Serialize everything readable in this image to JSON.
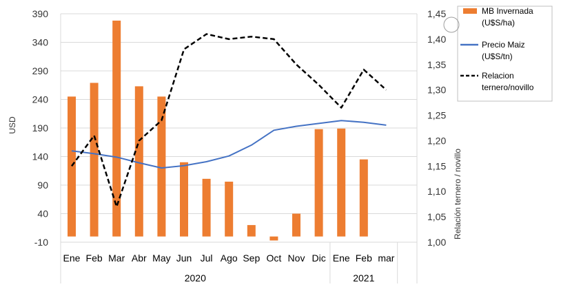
{
  "chart_data": {
    "type": "bar",
    "categories": [
      "Ene",
      "Feb",
      "Mar",
      "Abr",
      "May",
      "Jun",
      "Jul",
      "Ago",
      "Sep",
      "Oct",
      "Nov",
      "Dic",
      "Ene",
      "Feb",
      "mar"
    ],
    "groups": [
      {
        "label": "2020",
        "span": [
          0,
          11
        ]
      },
      {
        "label": "2021",
        "span": [
          12,
          14
        ]
      }
    ],
    "ylabel": "USD",
    "y2label": "Relación ternero / novillo",
    "ylim": [
      -10,
      390
    ],
    "y2lim": [
      1.0,
      1.45
    ],
    "yticks": [
      "-10",
      "40",
      "90",
      "140",
      "190",
      "240",
      "290",
      "340",
      "390"
    ],
    "y2ticks": [
      "1,00",
      "1,05",
      "1,10",
      "1,15",
      "1,20",
      "1,25",
      "1,30",
      "1,35",
      "1,40",
      "1,45"
    ],
    "legend_position": "top-right",
    "series": [
      {
        "name": "MB Invernada (U$S/ha)",
        "legend_lines": [
          "MB Invernada",
          "(U$S/ha)"
        ],
        "type": "bar",
        "axis": "left",
        "color": "#ed7d31",
        "values": [
          245,
          269,
          378,
          263,
          245,
          130,
          101,
          96,
          20,
          -7,
          40,
          188,
          189,
          135,
          null
        ]
      },
      {
        "name": "Precio Maiz (U$S/tn)",
        "legend_lines": [
          "Precio Maiz",
          "(U$S/tn)"
        ],
        "type": "line",
        "axis": "left",
        "color": "#4472c4",
        "values": [
          150,
          145,
          139,
          129,
          120,
          124,
          131,
          141,
          160,
          186,
          193,
          198,
          203,
          200,
          195
        ]
      },
      {
        "name": "Relacion ternero/novillo",
        "legend_lines": [
          "Relacion",
          "ternero/novillo"
        ],
        "type": "line",
        "axis": "right",
        "style": "dashed",
        "color": "#000000",
        "values": [
          1.15,
          1.21,
          1.07,
          1.2,
          1.24,
          1.38,
          1.41,
          1.4,
          1.405,
          1.4,
          1.35,
          1.31,
          1.265,
          1.34,
          1.3
        ]
      }
    ]
  }
}
